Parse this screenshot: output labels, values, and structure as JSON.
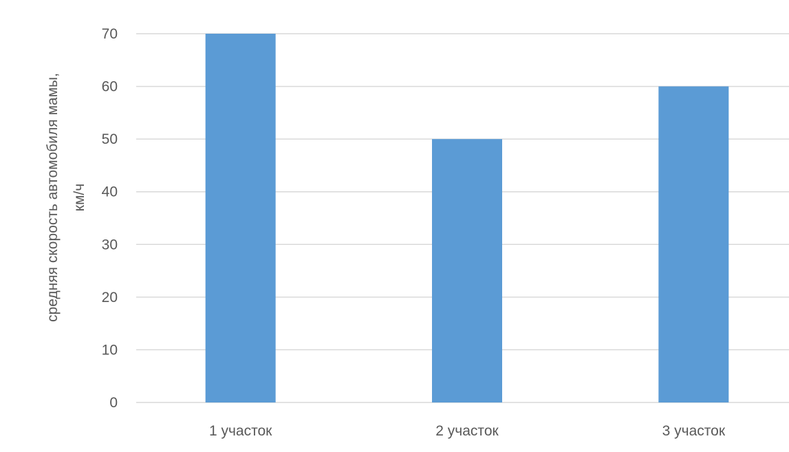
{
  "chart_data": {
    "type": "bar",
    "title": "",
    "xlabel": "",
    "ylabel": "средняя скорость автомобиля мамы, км/ч",
    "ylabel_lines": [
      "средняя скорость автомобиля мамы,",
      "км/ч"
    ],
    "categories": [
      "1 участок",
      "2 участок",
      "3 участок"
    ],
    "values": [
      70,
      50,
      60
    ],
    "ylim": [
      0,
      70
    ],
    "yticks": [
      0,
      10,
      20,
      30,
      40,
      50,
      60,
      70
    ],
    "grid": true,
    "legend": "none",
    "colors": {
      "bar": "#5b9bd5",
      "grid": "#d9d9d9",
      "text": "#595959"
    }
  }
}
